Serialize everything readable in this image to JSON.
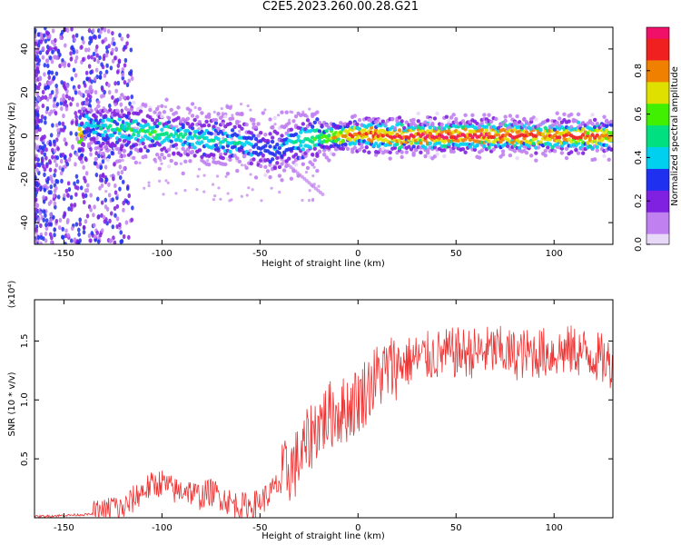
{
  "title": "C2E5.2023.260.00.28.G21",
  "chart_data": [
    {
      "type": "heatmap",
      "xlabel": "Height of straight line (km)",
      "ylabel": "Frequency (Hz)",
      "xlim": [
        -165,
        130
      ],
      "ylim": [
        -50,
        50
      ],
      "xticks": [
        -150,
        -100,
        -50,
        0,
        50,
        100
      ],
      "yticks": [
        -40,
        -20,
        0,
        20,
        40
      ],
      "colorbar": {
        "label": "Normalized spectral amplitude",
        "range": [
          0,
          1
        ],
        "ticks": [
          "0.0",
          "0.2",
          "0.4",
          "0.6",
          "0.8"
        ],
        "colors": [
          "#e8d8f8",
          "#c080f0",
          "#8020e0",
          "#2030f0",
          "#00d0f0",
          "#00e080",
          "#40f000",
          "#e0e000",
          "#f08000",
          "#f02020",
          "#f0106a"
        ]
      },
      "ridge": {
        "x": [
          -140,
          -130,
          -120,
          -110,
          -100,
          -90,
          -80,
          -70,
          -60,
          -50,
          -45,
          -40,
          -35,
          -30,
          -20,
          -10,
          0,
          20,
          40,
          60,
          80,
          100,
          120,
          130
        ],
        "y": [
          5,
          4,
          3,
          2,
          1,
          0,
          -1,
          -2,
          -3,
          -5,
          -8,
          -6,
          -3,
          -2,
          -1,
          0,
          1,
          0,
          0,
          0,
          0,
          0,
          0,
          0
        ],
        "amplitude": [
          0.4,
          0.45,
          0.5,
          0.5,
          0.5,
          0.45,
          0.45,
          0.45,
          0.4,
          0.35,
          0.3,
          0.35,
          0.4,
          0.45,
          0.55,
          0.75,
          0.85,
          0.9,
          0.92,
          0.92,
          0.9,
          0.88,
          0.85,
          0.8
        ]
      }
    },
    {
      "type": "line",
      "xlabel": "Height of straight line (km)",
      "ylabel": "SNR (10 * v/v)",
      "yscale_label": "(x10⁴)",
      "xlim": [
        -165,
        130
      ],
      "ylim": [
        0,
        1.85
      ],
      "xticks": [
        -150,
        -100,
        -50,
        0,
        50,
        100
      ],
      "yticks": [
        "0.5",
        "1.0",
        "1.5"
      ],
      "ytick_values": [
        0.5,
        1.0,
        1.5
      ],
      "color": "#ee3333",
      "series": [
        {
          "x": [
            -165,
            -150,
            -135,
            -128,
            -125,
            -122,
            -118,
            -112,
            -108,
            -104,
            -100,
            -96,
            -92,
            -88,
            -84,
            -80,
            -76,
            -72,
            -68,
            -64,
            -60,
            -56,
            -52,
            -48,
            -44,
            -40,
            -36,
            -32,
            -28,
            -24,
            -20,
            -16,
            -12,
            -8,
            -4,
            0,
            5,
            10,
            15,
            20,
            25,
            30,
            40,
            50,
            60,
            70,
            80,
            90,
            100,
            110,
            120,
            130
          ],
          "y": [
            0.01,
            0.02,
            0.03,
            0.05,
            0.12,
            0.06,
            0.1,
            0.2,
            0.25,
            0.28,
            0.3,
            0.25,
            0.22,
            0.25,
            0.2,
            0.18,
            0.22,
            0.2,
            0.16,
            0.12,
            0.1,
            0.1,
            0.12,
            0.16,
            0.22,
            0.3,
            0.4,
            0.45,
            0.55,
            0.7,
            0.8,
            0.85,
            0.9,
            0.9,
            0.95,
            1.0,
            1.1,
            1.2,
            1.25,
            1.3,
            1.32,
            1.35,
            1.38,
            1.4,
            1.4,
            1.42,
            1.38,
            1.4,
            1.4,
            1.42,
            1.38,
            1.3
          ]
        }
      ]
    }
  ]
}
